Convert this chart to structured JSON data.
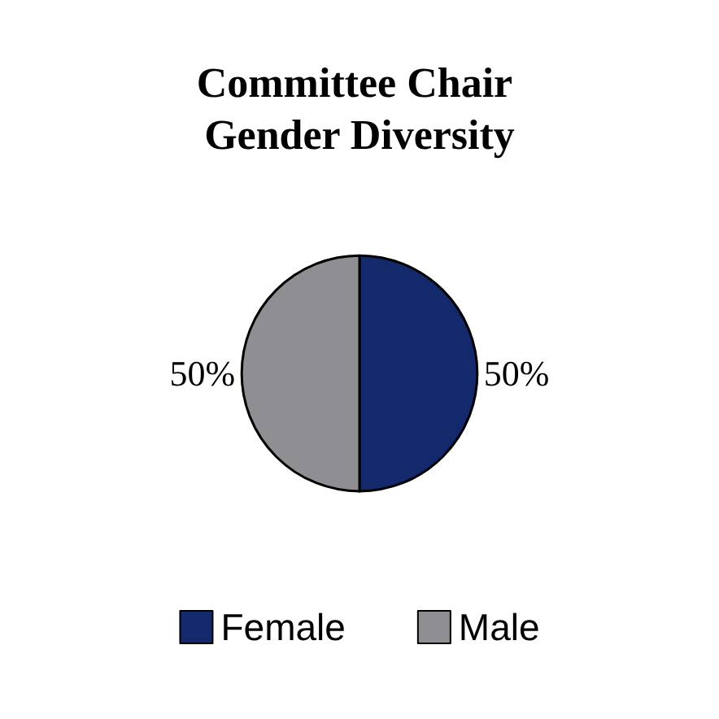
{
  "chart_data": {
    "type": "pie",
    "title": "Committee Chair Gender Diversity",
    "categories": [
      "Female",
      "Male"
    ],
    "values": [
      50,
      50
    ],
    "value_labels": [
      "50%",
      "50%"
    ],
    "colors": [
      "#13296b",
      "#8e8e93"
    ],
    "legend": "bottom"
  }
}
